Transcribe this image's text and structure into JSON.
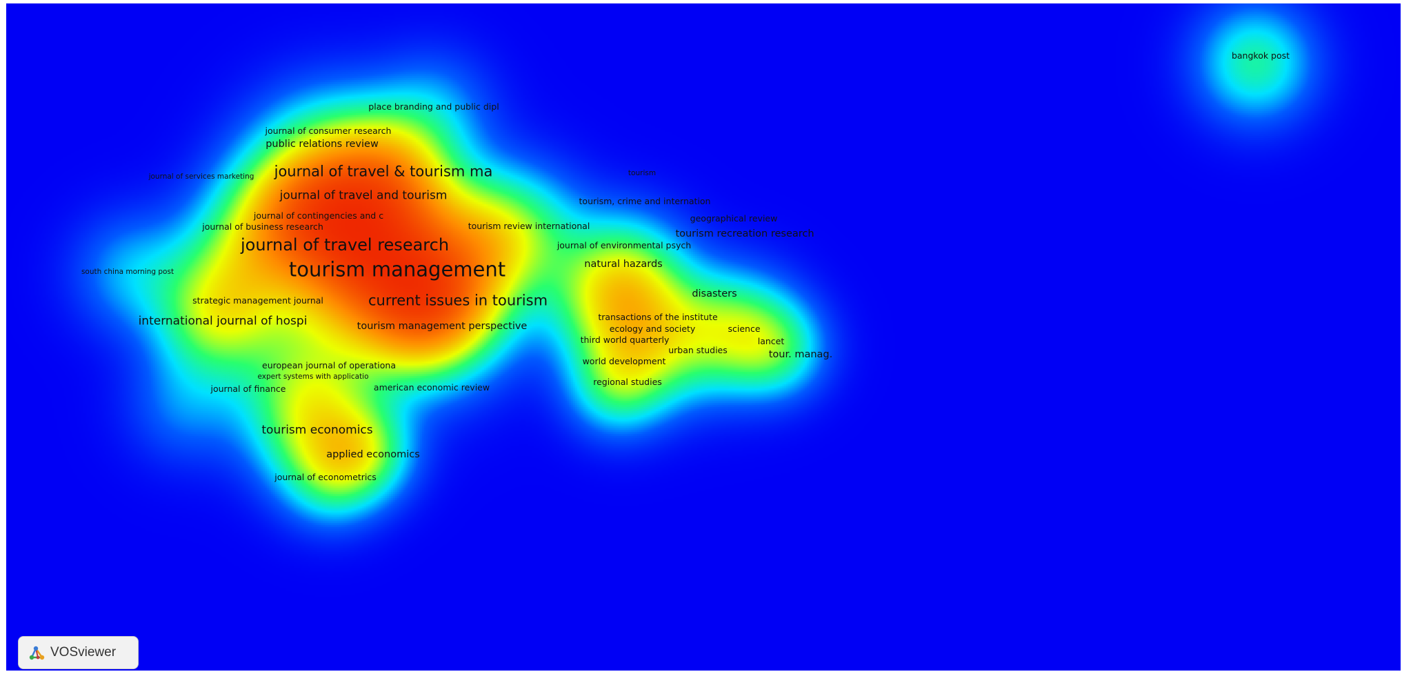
{
  "app": {
    "brand": "VOSviewer"
  },
  "colors": {
    "background": "#0000f5",
    "density_scale": [
      "#0000f5",
      "#00e0ff",
      "#33ff66",
      "#eaff00",
      "#ff8800",
      "#e80000"
    ]
  },
  "map": {
    "type": "density visualization",
    "items": [
      {
        "label": "tourism management",
        "size": 7,
        "weight": 1.0
      },
      {
        "label": "journal of travel research",
        "size": 6,
        "weight": 0.85
      },
      {
        "label": "current issues in tourism",
        "size": 5,
        "weight": 0.6
      },
      {
        "label": "journal of travel & tourism ma",
        "size": 5,
        "weight": 0.55
      },
      {
        "label": "journal of travel and tourism",
        "size": 4,
        "weight": 0.4
      },
      {
        "label": "public relations review",
        "size": 3,
        "weight": 0.35
      },
      {
        "label": "journal of consumer research",
        "size": 2,
        "weight": 0.25
      },
      {
        "label": "place branding and public dipl",
        "size": 2,
        "weight": 0.2
      },
      {
        "label": "journal of services marketing",
        "size": 1,
        "weight": 0.2
      },
      {
        "label": "journal of contingencies and c",
        "size": 2,
        "weight": 0.25
      },
      {
        "label": "journal of business research",
        "size": 2,
        "weight": 0.3
      },
      {
        "label": "tourism review international",
        "size": 2,
        "weight": 0.3
      },
      {
        "label": "south china morning post",
        "size": 1,
        "weight": 0.3
      },
      {
        "label": "strategic management journal",
        "size": 2,
        "weight": 0.3
      },
      {
        "label": "international journal of hospi",
        "size": 4,
        "weight": 0.45
      },
      {
        "label": "tourism management perspective",
        "size": 3,
        "weight": 0.35
      },
      {
        "label": "european journal of operationa",
        "size": 2,
        "weight": 0.2
      },
      {
        "label": "expert systems with applicatio",
        "size": 1,
        "weight": 0.15
      },
      {
        "label": "journal of finance",
        "size": 2,
        "weight": 0.2
      },
      {
        "label": "american economic review",
        "size": 2,
        "weight": 0.2
      },
      {
        "label": "tourism economics",
        "size": 4,
        "weight": 0.45
      },
      {
        "label": "applied economics",
        "size": 3,
        "weight": 0.35
      },
      {
        "label": "journal of econometrics",
        "size": 2,
        "weight": 0.25
      },
      {
        "label": "tourism",
        "size": 1,
        "weight": 0.15
      },
      {
        "label": "tourism, crime and internation",
        "size": 2,
        "weight": 0.25
      },
      {
        "label": "geographical review",
        "size": 2,
        "weight": 0.25
      },
      {
        "label": "tourism recreation research",
        "size": 3,
        "weight": 0.3
      },
      {
        "label": "journal of environmental psych",
        "size": 2,
        "weight": 0.25
      },
      {
        "label": "natural hazards",
        "size": 3,
        "weight": 0.3
      },
      {
        "label": "disasters",
        "size": 3,
        "weight": 0.3
      },
      {
        "label": "transactions of the institute",
        "size": 2,
        "weight": 0.45
      },
      {
        "label": "ecology and society",
        "size": 2,
        "weight": 0.35
      },
      {
        "label": "science",
        "size": 2,
        "weight": 0.35
      },
      {
        "label": "third world quarterly",
        "size": 2,
        "weight": 0.3
      },
      {
        "label": "lancet",
        "size": 2,
        "weight": 0.3
      },
      {
        "label": "urban studies",
        "size": 2,
        "weight": 0.3
      },
      {
        "label": "tour. manag.",
        "size": 3,
        "weight": 0.35
      },
      {
        "label": "world development",
        "size": 2,
        "weight": 0.3
      },
      {
        "label": "regional studies",
        "size": 2,
        "weight": 0.25
      },
      {
        "label": "bangkok post",
        "size": 2,
        "weight": 0.35
      }
    ]
  }
}
